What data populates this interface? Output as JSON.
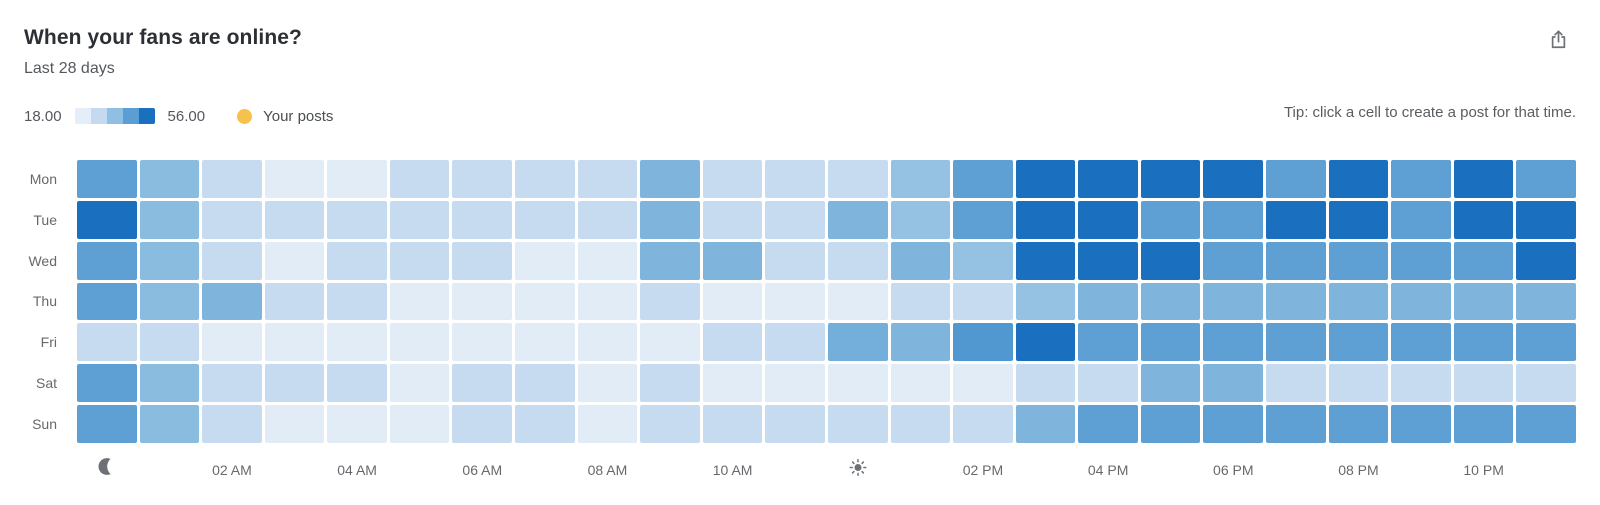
{
  "header": {
    "title": "When your fans are online?",
    "subtitle": "Last 28 days"
  },
  "toolbar": {
    "export_icon": "share-export-icon"
  },
  "legend": {
    "min_label": "18.00",
    "max_label": "56.00",
    "scale_colors": [
      "#e4eef8",
      "#c5daf0",
      "#8fbfe2",
      "#5b9ed3",
      "#1a70bf"
    ],
    "posts_dot_color": "#f6c24b",
    "posts_label": "Your posts"
  },
  "tip": "Tip: click a cell to create a post for that time.",
  "chart_data": {
    "type": "heatmap",
    "title": "When your fans are online?",
    "subtitle": "Last 28 days",
    "value_range": [
      18,
      56
    ],
    "legend_min": 18.0,
    "legend_max": 56.0,
    "grid": "white 3px gaps between cells",
    "legend_position": "top-left",
    "color_anchors": {
      "values": [
        18,
        27.5,
        37,
        46.5,
        56
      ],
      "colors": [
        "#e4eef8",
        "#c5daf0",
        "#8fbfe2",
        "#5b9ed3",
        "#1a70bf"
      ]
    },
    "x": [
      "12 AM",
      "01 AM",
      "02 AM",
      "03 AM",
      "04 AM",
      "05 AM",
      "06 AM",
      "07 AM",
      "08 AM",
      "09 AM",
      "10 AM",
      "11 AM",
      "12 PM",
      "01 PM",
      "02 PM",
      "03 PM",
      "04 PM",
      "05 PM",
      "06 PM",
      "07 PM",
      "08 PM",
      "09 PM",
      "10 PM",
      "11 PM"
    ],
    "x_ticks": [
      {
        "index": 0,
        "type": "icon",
        "name": "moon-icon"
      },
      {
        "index": 2,
        "type": "text",
        "label": "02 AM"
      },
      {
        "index": 4,
        "type": "text",
        "label": "04 AM"
      },
      {
        "index": 6,
        "type": "text",
        "label": "06 AM"
      },
      {
        "index": 8,
        "type": "text",
        "label": "08 AM"
      },
      {
        "index": 10,
        "type": "text",
        "label": "10 AM"
      },
      {
        "index": 12,
        "type": "icon",
        "name": "sun-icon"
      },
      {
        "index": 14,
        "type": "text",
        "label": "02 PM"
      },
      {
        "index": 16,
        "type": "text",
        "label": "04 PM"
      },
      {
        "index": 18,
        "type": "text",
        "label": "06 PM"
      },
      {
        "index": 20,
        "type": "text",
        "label": "08 PM"
      },
      {
        "index": 22,
        "type": "text",
        "label": "10 PM"
      }
    ],
    "categories_y": [
      "Mon",
      "Tue",
      "Wed",
      "Thu",
      "Fri",
      "Sat",
      "Sun"
    ],
    "series": [
      {
        "name": "Mon",
        "values": [
          46,
          38,
          27,
          19,
          19,
          27,
          27,
          27,
          27,
          40,
          27,
          27,
          27,
          36,
          46,
          56,
          56,
          56,
          56,
          46,
          56,
          46,
          56,
          46
        ]
      },
      {
        "name": "Tue",
        "values": [
          56,
          38,
          27,
          27,
          27,
          27,
          27,
          27,
          27,
          40,
          27,
          27,
          40,
          36,
          46,
          56,
          56,
          46,
          46,
          56,
          56,
          46,
          56,
          56
        ]
      },
      {
        "name": "Wed",
        "values": [
          46,
          38,
          27,
          19,
          27,
          27,
          27,
          19,
          19,
          40,
          40,
          27,
          27,
          40,
          36,
          56,
          56,
          56,
          46,
          46,
          46,
          46,
          46,
          56
        ]
      },
      {
        "name": "Thu",
        "values": [
          46,
          38,
          40,
          27,
          27,
          19,
          19,
          19,
          19,
          27,
          19,
          19,
          19,
          27,
          27,
          36,
          40,
          40,
          40,
          40,
          40,
          40,
          40,
          40
        ]
      },
      {
        "name": "Fri",
        "values": [
          27,
          27,
          19,
          19,
          19,
          19,
          19,
          19,
          19,
          19,
          27,
          27,
          42,
          40,
          48,
          56,
          46,
          46,
          46,
          46,
          46,
          46,
          46,
          46
        ]
      },
      {
        "name": "Sat",
        "values": [
          46,
          38,
          27,
          27,
          27,
          19,
          27,
          27,
          19,
          27,
          19,
          19,
          19,
          19,
          19,
          27,
          27,
          40,
          40,
          27,
          27,
          27,
          27,
          27
        ]
      },
      {
        "name": "Sun",
        "values": [
          46,
          38,
          27,
          19,
          19,
          19,
          27,
          27,
          19,
          27,
          27,
          27,
          27,
          27,
          27,
          40,
          46,
          46,
          46,
          46,
          46,
          46,
          46,
          46
        ]
      }
    ],
    "your_posts_markers": []
  }
}
